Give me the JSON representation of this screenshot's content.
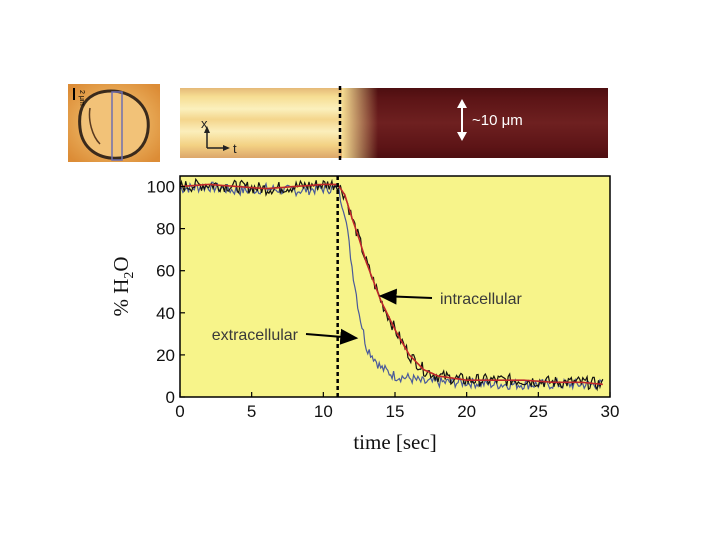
{
  "inset": {
    "scale_label": "2 μm",
    "kymograph_size_label": "~10 μm",
    "kymograph_axis_x": "x",
    "kymograph_axis_t": "t"
  },
  "colors": {
    "plot_background": "#f7f48a",
    "extracellular": "#4a5a9a",
    "intracellular_black": "#111111",
    "intracellular_red": "#c0282a",
    "kymo_bright": "#f6dd92",
    "kymo_dark": "#5c1416"
  },
  "chart_data": {
    "type": "line",
    "title": "",
    "xlabel": "time [sec]",
    "ylabel": "% H2O",
    "ylabel_parts": {
      "prefix": "% H",
      "subscript": "2",
      "suffix": "O"
    },
    "xlim": [
      0,
      30
    ],
    "ylim": [
      0,
      105
    ],
    "xticks": [
      0,
      5,
      10,
      15,
      20,
      25,
      30
    ],
    "yticks": [
      0,
      20,
      40,
      60,
      80,
      100
    ],
    "grid": false,
    "vline_x": 11,
    "annotations": [
      {
        "text": "intracellular",
        "arrow_to": [
          14,
          48
        ]
      },
      {
        "text": "extracellular",
        "arrow_to": [
          12.3,
          28
        ]
      }
    ],
    "series": [
      {
        "name": "extracellular",
        "x": [
          0,
          2,
          4,
          6,
          8,
          10,
          11,
          11.5,
          12,
          12.5,
          13,
          14,
          15,
          16,
          17,
          18,
          20,
          22,
          24,
          26,
          28,
          29.5
        ],
        "y": [
          99,
          100,
          98,
          99,
          98,
          99,
          99,
          88,
          62,
          40,
          24,
          14,
          10,
          9,
          7,
          7,
          7,
          6,
          6,
          6,
          6,
          6
        ]
      },
      {
        "name": "intracellular",
        "x": [
          0,
          2,
          4,
          6,
          8,
          10,
          11,
          11.5,
          12,
          12.5,
          13,
          13.5,
          14,
          15,
          16,
          17,
          18,
          20,
          22,
          24,
          26,
          28,
          29.5
        ],
        "y": [
          100,
          101,
          100,
          99,
          100,
          101,
          101,
          96,
          85,
          75,
          64,
          55,
          46,
          32,
          20,
          13,
          10,
          8,
          8,
          8,
          7,
          7,
          6
        ]
      }
    ]
  }
}
